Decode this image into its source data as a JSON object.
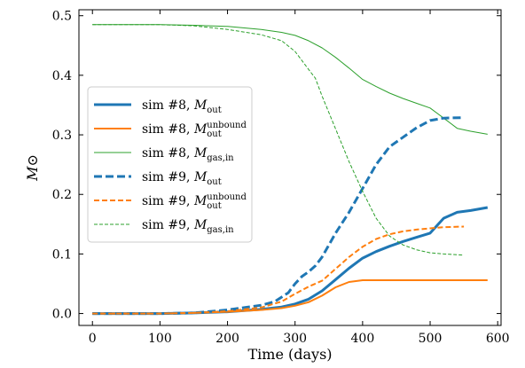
{
  "chart_data": {
    "type": "line",
    "title": "",
    "xlabel": "Time (days)",
    "ylabel": "M⊙",
    "xlim": [
      -20,
      605
    ],
    "ylim": [
      -0.02,
      0.51
    ],
    "xticks": [
      0,
      100,
      200,
      300,
      400,
      500,
      600
    ],
    "yticks": [
      0.0,
      0.1,
      0.2,
      0.3,
      0.4,
      0.5
    ],
    "ytick_labels": [
      "0.0",
      "0.1",
      "0.2",
      "0.3",
      "0.4",
      "0.5"
    ],
    "grid": false,
    "legend_position": "center-left",
    "series": [
      {
        "name": "sim #8, M_out",
        "legend_main": "sim #8, M",
        "legend_sub": "out",
        "legend_sup": "",
        "color": "#1f77b4",
        "style": "solid",
        "weight": "thick",
        "x": [
          0,
          100,
          150,
          200,
          250,
          280,
          300,
          320,
          340,
          360,
          380,
          400,
          420,
          440,
          460,
          480,
          500,
          520,
          540,
          560,
          585
        ],
        "y": [
          0.0,
          0.0,
          0.001,
          0.003,
          0.007,
          0.011,
          0.016,
          0.024,
          0.038,
          0.057,
          0.076,
          0.093,
          0.104,
          0.113,
          0.121,
          0.128,
          0.135,
          0.16,
          0.17,
          0.173,
          0.178
        ]
      },
      {
        "name": "sim #8, M_out^unbound",
        "legend_main": "sim #8, M",
        "legend_sub": "out",
        "legend_sup": "unbound",
        "color": "#ff7f0e",
        "style": "solid",
        "weight": "medium",
        "x": [
          0,
          100,
          150,
          200,
          250,
          280,
          300,
          320,
          340,
          360,
          380,
          400,
          420,
          450,
          500,
          550,
          585
        ],
        "y": [
          0.0,
          0.0,
          0.001,
          0.003,
          0.006,
          0.009,
          0.013,
          0.019,
          0.03,
          0.044,
          0.053,
          0.056,
          0.056,
          0.056,
          0.056,
          0.056,
          0.056
        ]
      },
      {
        "name": "sim #8, M_gas,in",
        "legend_main": "sim #8, M",
        "legend_sub": "gas,in",
        "legend_sup": "",
        "color": "#2ca02c",
        "style": "solid",
        "weight": "thin",
        "x": [
          0,
          100,
          150,
          200,
          250,
          280,
          300,
          320,
          340,
          360,
          380,
          400,
          420,
          440,
          460,
          480,
          500,
          520,
          540,
          560,
          585
        ],
        "y": [
          0.485,
          0.485,
          0.484,
          0.482,
          0.477,
          0.472,
          0.467,
          0.458,
          0.446,
          0.43,
          0.412,
          0.393,
          0.381,
          0.37,
          0.361,
          0.353,
          0.345,
          0.328,
          0.311,
          0.306,
          0.301
        ]
      },
      {
        "name": "sim #9, M_out",
        "legend_main": "sim #9, M",
        "legend_sub": "out",
        "legend_sup": "",
        "color": "#1f77b4",
        "style": "dashed",
        "weight": "thick",
        "x": [
          0,
          100,
          150,
          200,
          250,
          270,
          290,
          300,
          310,
          320,
          330,
          340,
          360,
          380,
          400,
          420,
          440,
          460,
          480,
          500,
          520,
          550
        ],
        "y": [
          0.0,
          0.0,
          0.001,
          0.006,
          0.014,
          0.02,
          0.035,
          0.05,
          0.062,
          0.07,
          0.08,
          0.095,
          0.135,
          0.17,
          0.21,
          0.25,
          0.28,
          0.296,
          0.312,
          0.324,
          0.328,
          0.329
        ]
      },
      {
        "name": "sim #9, M_out^unbound",
        "legend_main": "sim #9, M",
        "legend_sub": "out",
        "legend_sup": "unbound",
        "color": "#ff7f0e",
        "style": "dashed",
        "weight": "medium",
        "x": [
          0,
          100,
          150,
          200,
          250,
          280,
          300,
          320,
          340,
          360,
          380,
          400,
          420,
          440,
          460,
          480,
          500,
          520,
          550
        ],
        "y": [
          0.0,
          0.0,
          0.001,
          0.004,
          0.01,
          0.02,
          0.033,
          0.045,
          0.055,
          0.075,
          0.095,
          0.112,
          0.125,
          0.133,
          0.138,
          0.141,
          0.143,
          0.145,
          0.146
        ]
      },
      {
        "name": "sim #9, M_gas,in",
        "legend_main": "sim #9, M",
        "legend_sub": "gas,in",
        "legend_sup": "",
        "color": "#2ca02c",
        "style": "dashed",
        "weight": "thin",
        "x": [
          0,
          100,
          150,
          200,
          250,
          280,
          300,
          310,
          320,
          330,
          340,
          360,
          380,
          400,
          420,
          440,
          460,
          480,
          500,
          520,
          550
        ],
        "y": [
          0.485,
          0.485,
          0.483,
          0.477,
          0.468,
          0.458,
          0.44,
          0.425,
          0.41,
          0.395,
          0.365,
          0.31,
          0.255,
          0.205,
          0.16,
          0.13,
          0.115,
          0.107,
          0.102,
          0.1,
          0.098
        ]
      }
    ]
  }
}
